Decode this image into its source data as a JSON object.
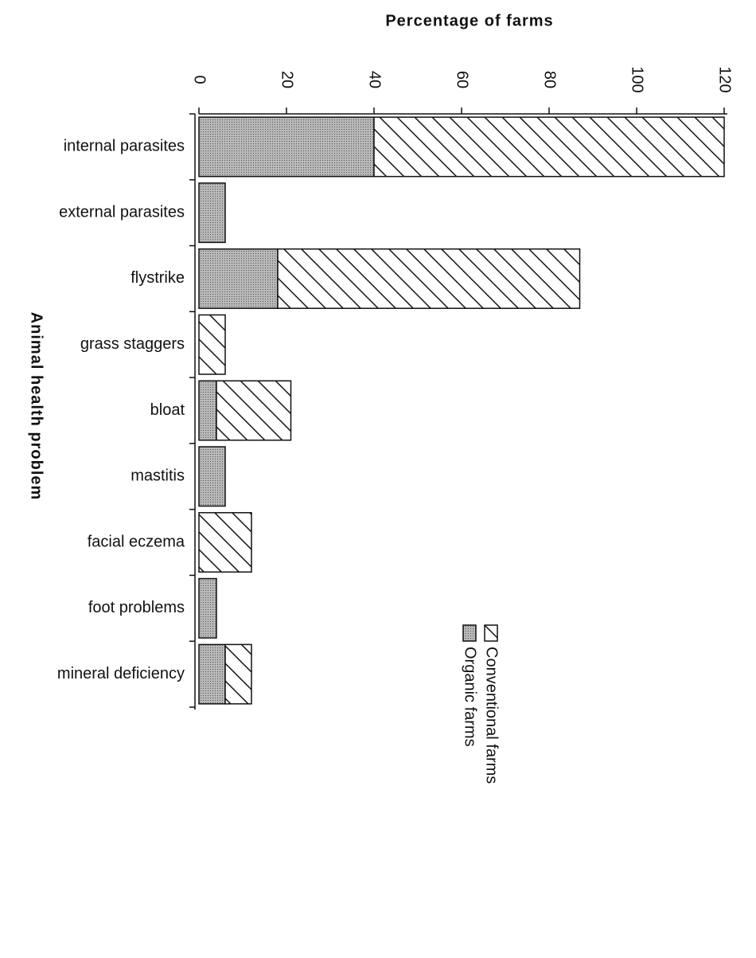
{
  "chart_data": {
    "type": "stacked_bar_horizontal",
    "title": "Percentage of farms",
    "y_label": "Animal health problem",
    "categories": [
      "internal parasites",
      "external parasites",
      "flystrike",
      "grass staggers",
      "bloat",
      "mastitis",
      "facial eczema",
      "foot problems",
      "mineral deficiency"
    ],
    "series": [
      {
        "name": "Organic farms",
        "color": "#b8b8b8",
        "values": [
          40,
          6,
          18,
          0,
          4,
          6,
          0,
          4,
          6
        ]
      },
      {
        "name": "Conventional farms",
        "color": "#ffffff",
        "values": [
          80,
          0,
          69,
          6,
          17,
          0,
          12,
          0,
          6
        ]
      }
    ],
    "xlim": [
      0,
      120
    ],
    "xticks": [
      0,
      20,
      40,
      60,
      80,
      100,
      120
    ]
  }
}
